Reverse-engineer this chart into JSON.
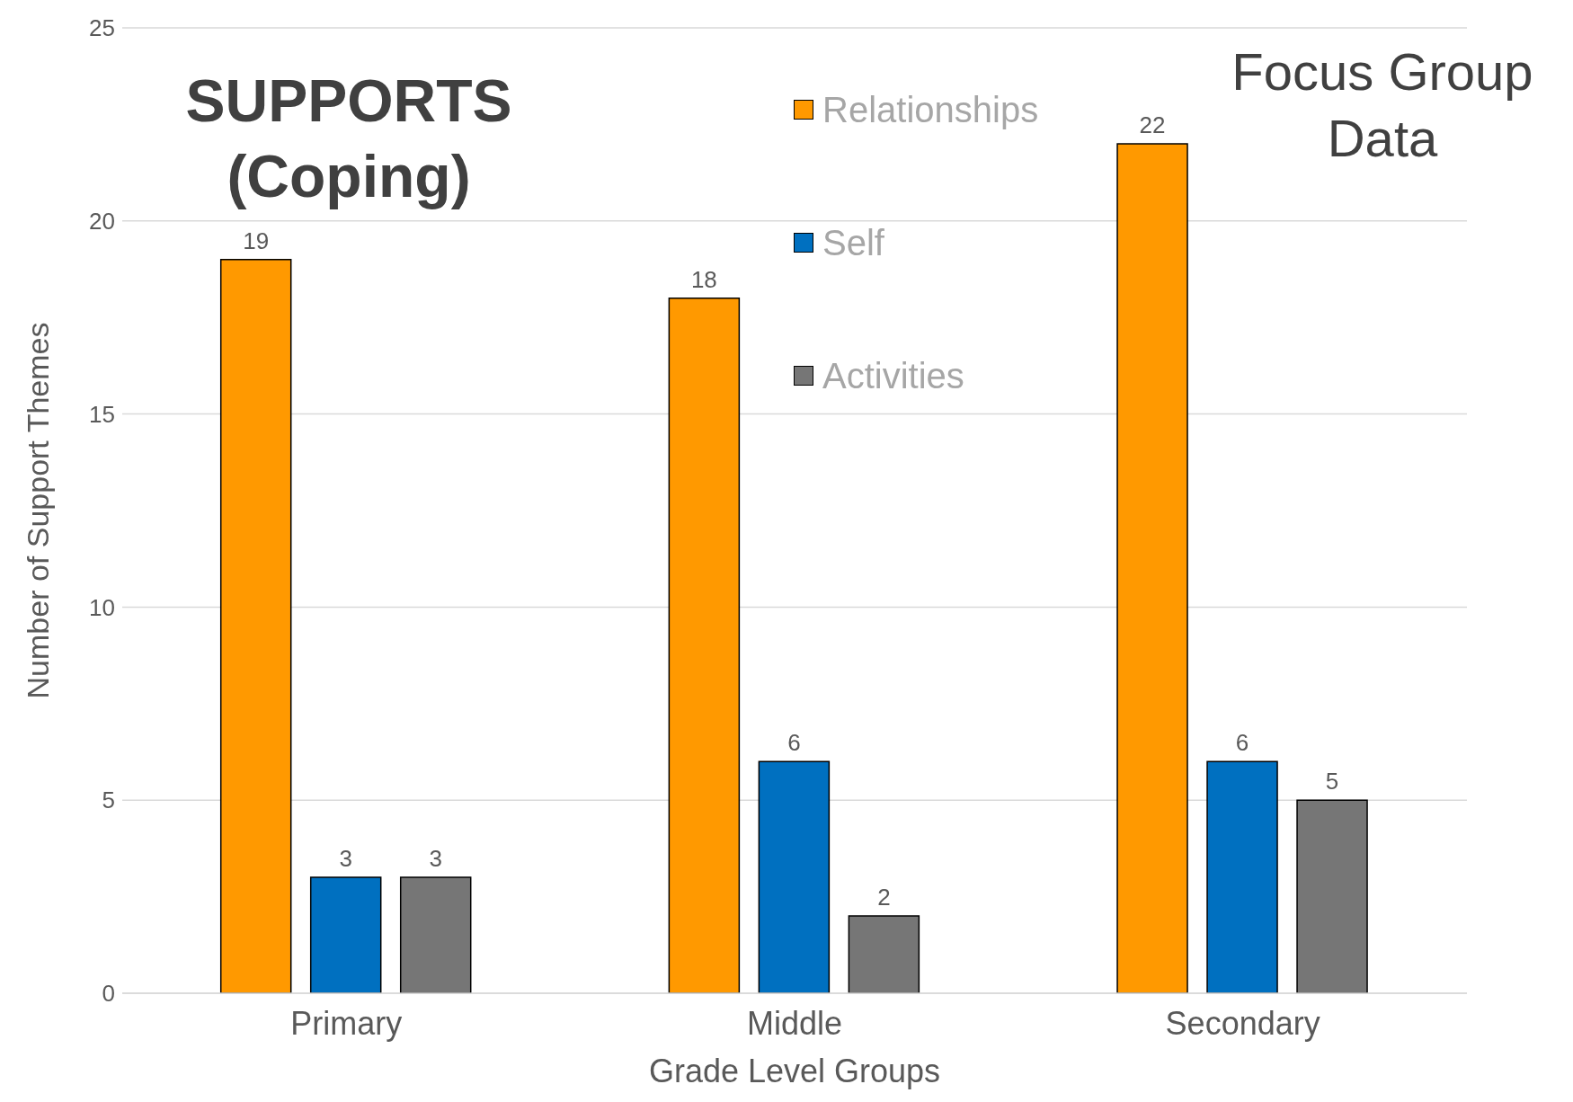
{
  "chart_data": {
    "type": "bar",
    "title": "SUPPORTS (Coping)",
    "subtitle": "Focus Group Data",
    "xlabel": "Grade Level Groups",
    "ylabel": "Number of Support Themes",
    "categories": [
      "Primary",
      "Middle",
      "Secondary"
    ],
    "series": [
      {
        "name": "Relationships",
        "color": "#ff9900",
        "values": [
          19,
          18,
          22
        ]
      },
      {
        "name": "Self",
        "color": "#0070c0",
        "values": [
          3,
          6,
          6
        ]
      },
      {
        "name": "Activities",
        "color": "#767676",
        "values": [
          3,
          2,
          5
        ]
      }
    ],
    "ylim": [
      0,
      25
    ],
    "yticks": [
      0,
      5,
      10,
      15,
      20,
      25
    ],
    "grid": "y",
    "legend": "top",
    "data_labels": true
  }
}
